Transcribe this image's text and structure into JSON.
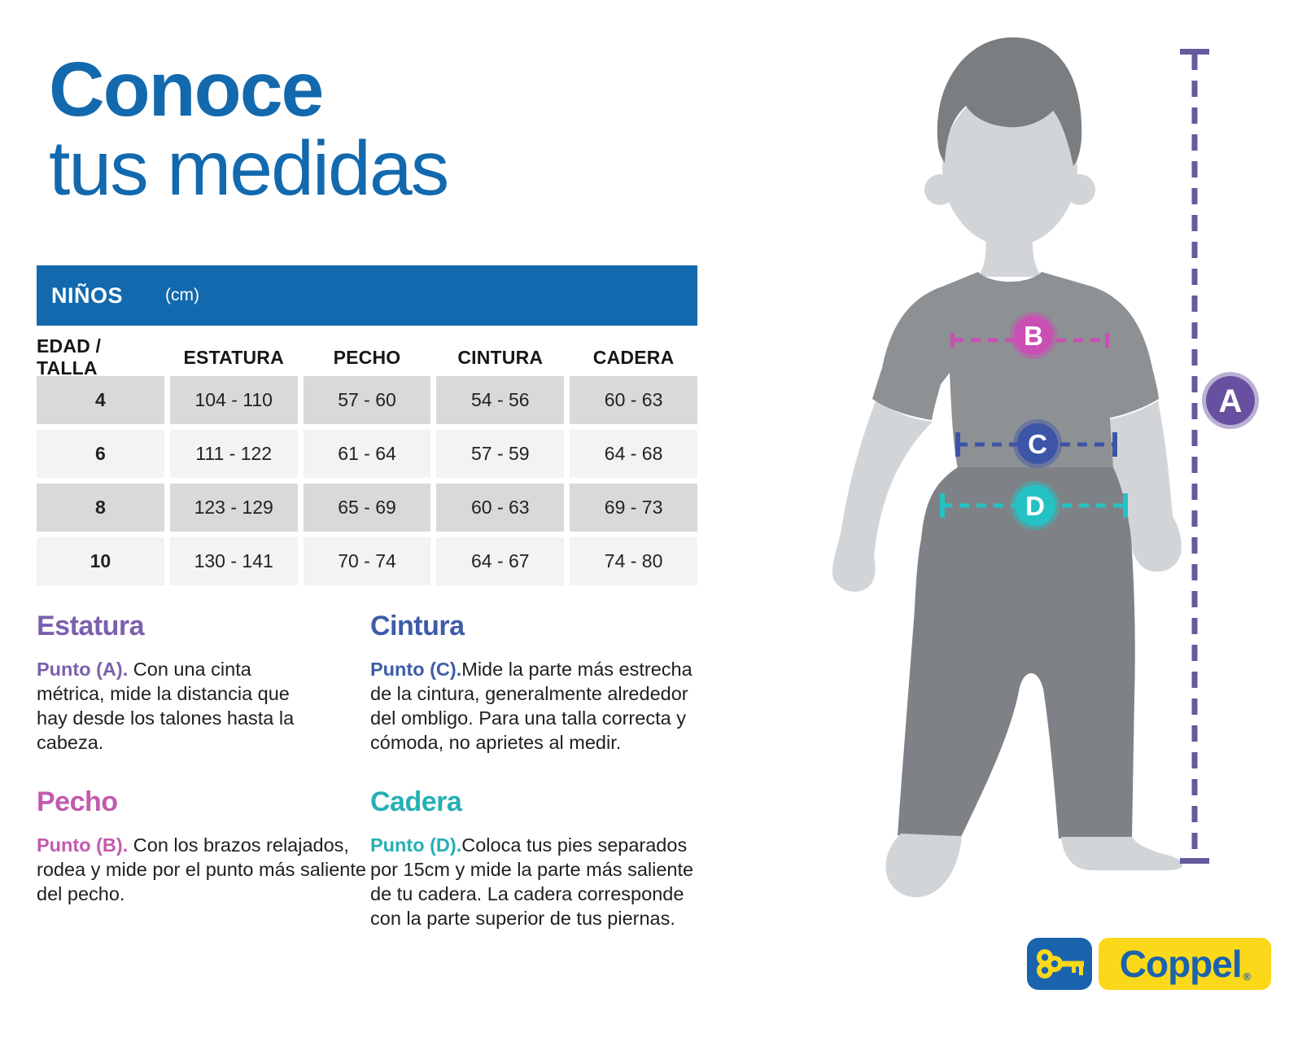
{
  "title": {
    "line1": "Conoce",
    "line2": "tus medidas"
  },
  "table": {
    "banner": {
      "label": "NIÑOS",
      "unit": "(cm)"
    },
    "columns": [
      "EDAD / TALLA",
      "ESTATURA",
      "PECHO",
      "CINTURA",
      "CADERA"
    ],
    "rows": [
      [
        "4",
        "104 - 110",
        "57 - 60",
        "54 - 56",
        "60 - 63"
      ],
      [
        "6",
        "111 - 122",
        "61 - 64",
        "57 - 59",
        "64 - 68"
      ],
      [
        "8",
        "123 - 129",
        "65 - 69",
        "60 - 63",
        "69 - 73"
      ],
      [
        "10",
        "130 - 141",
        "70 - 74",
        "64 - 67",
        "74 - 80"
      ]
    ]
  },
  "sections": [
    {
      "heading": "Estatura",
      "point": "Punto (A). ",
      "text": "Con una cinta métrica, mide la distancia que hay desde los talones hasta la cabeza.",
      "color": "#7a61ad"
    },
    {
      "heading": "Cintura",
      "point": "Punto (C).",
      "text": "Mide la parte más estrecha de la cintura, generalmente alrededor del ombligo. Para una talla correcta y cómoda, no aprietes al medir.",
      "color": "#3d5da9"
    },
    {
      "heading": "Pecho",
      "point": "Punto (B). ",
      "text": "Con los brazos relajados, rodea y mide por el punto más saliente del pecho.",
      "color": "#c25bae"
    },
    {
      "heading": "Cadera",
      "point": "Punto (D).",
      "text": "Coloca tus pies separados por 15cm y mide la parte más saliente de tu cadera. La cadera corresponde con la parte superior de tus piernas.",
      "color": "#25b0b4"
    }
  ],
  "figure": {
    "markers": [
      {
        "label": "A",
        "color": "#6850a0",
        "measure": "estatura"
      },
      {
        "label": "B",
        "color": "#c94fb4",
        "measure": "pecho"
      },
      {
        "label": "C",
        "color": "#3d55a6",
        "measure": "cintura"
      },
      {
        "label": "D",
        "color": "#25c2c4",
        "measure": "cadera"
      }
    ]
  },
  "logo": {
    "text": "Coppel",
    "registered": "®"
  },
  "colors": {
    "primary_blue": "#1269ae",
    "row_dark": "#d9d9d9",
    "row_light": "#f3f3f3",
    "marker_a": "#6850a0",
    "marker_b": "#c94fb4",
    "marker_c": "#3d55a6",
    "marker_d": "#25c2c4",
    "silhouette_shirt": "#8d9194",
    "silhouette_pants": "#7e8286",
    "silhouette_skin": "#d2d5d8",
    "silhouette_hair": "#7a7e81",
    "logo_blue": "#1a63ad",
    "logo_yellow": "#fbd81a"
  }
}
